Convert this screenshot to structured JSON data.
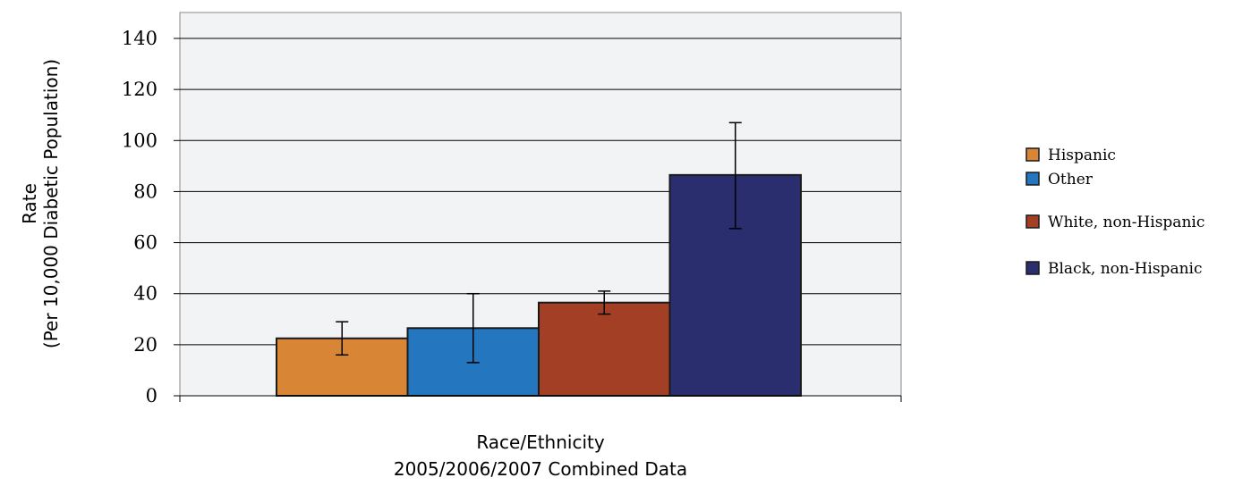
{
  "chart_data": {
    "type": "bar",
    "categories": [
      "Hispanic",
      "Other",
      "White, non-Hispanic",
      "Black, non-Hispanic"
    ],
    "values": [
      22.5,
      26.5,
      36.5,
      86.5
    ],
    "error_low": [
      16,
      13,
      32,
      65.5
    ],
    "error_high": [
      29,
      40,
      41,
      107
    ],
    "colors": [
      "#d98536",
      "#2476be",
      "#a33f24",
      "#2a2d6e"
    ],
    "title": "",
    "ylabel": [
      "Rate",
      "(Per 10,000 Diabetic Population)"
    ],
    "xlabel": [
      "Race/Ethnicity",
      "2005/2006/2007 Combined Data"
    ],
    "ylim": [
      0,
      140
    ],
    "yticks": [
      0,
      20,
      40,
      60,
      80,
      100,
      120,
      140
    ],
    "grid": true,
    "legend_position": "right"
  }
}
